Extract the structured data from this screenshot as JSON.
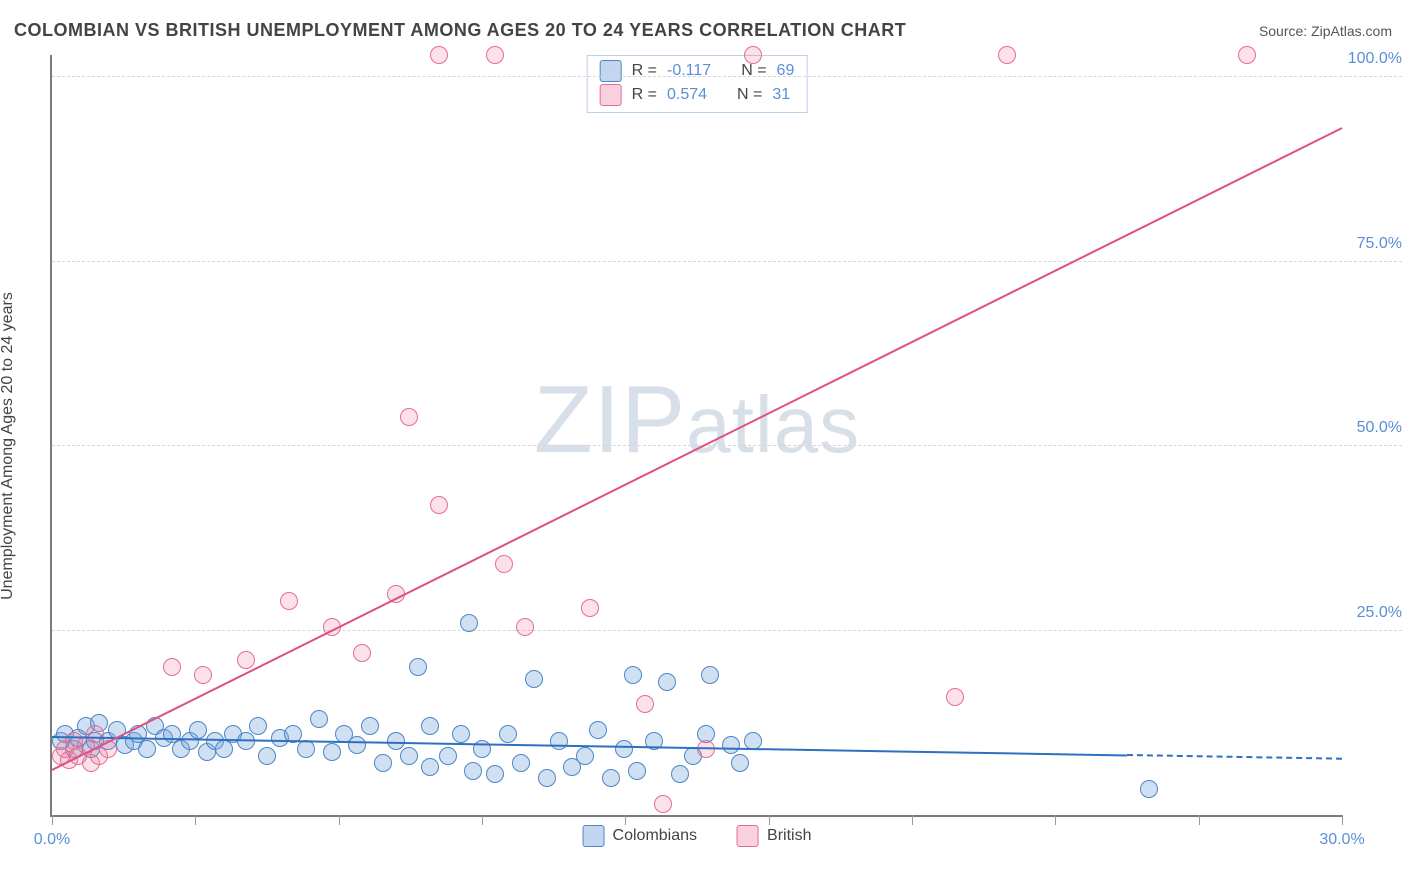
{
  "title": "COLOMBIAN VS BRITISH UNEMPLOYMENT AMONG AGES 20 TO 24 YEARS CORRELATION CHART",
  "source_prefix": "Source: ",
  "source_name": "ZipAtlas.com",
  "ylabel": "Unemployment Among Ages 20 to 24 years",
  "watermark_a": "ZIP",
  "watermark_b": "atlas",
  "chart": {
    "type": "scatter",
    "xlim": [
      0,
      30
    ],
    "ylim": [
      0,
      103
    ],
    "xtick_positions": [
      0,
      3.33,
      6.67,
      10,
      13.33,
      16.67,
      20,
      23.33,
      26.67,
      30
    ],
    "xtick_labels": {
      "0": "0.0%",
      "30": "30.0%"
    },
    "ytick_positions": [
      25,
      50,
      75,
      100
    ],
    "ytick_labels": [
      "25.0%",
      "50.0%",
      "75.0%",
      "100.0%"
    ],
    "grid_color": "#d6d6d6",
    "axis_color": "#7a7a7a",
    "background_color": "#ffffff",
    "marker_radius": 9,
    "series": [
      {
        "id": "colombians",
        "label": "Colombians",
        "fill": "rgba(120,165,220,0.35)",
        "stroke": "#4d86c6",
        "R": "-0.117",
        "N": "69",
        "trend": {
          "x1": 0,
          "y1": 10.5,
          "x2": 25,
          "y2": 8.0,
          "solid_to_x": 25,
          "dash_to_x": 30,
          "color": "#2e6fc0"
        },
        "points": [
          [
            0.2,
            10
          ],
          [
            0.3,
            11
          ],
          [
            0.5,
            9
          ],
          [
            0.6,
            10.5
          ],
          [
            0.8,
            12
          ],
          [
            0.9,
            9
          ],
          [
            1.0,
            10
          ],
          [
            1.1,
            12.5
          ],
          [
            1.3,
            10
          ],
          [
            1.5,
            11.5
          ],
          [
            1.7,
            9.5
          ],
          [
            1.9,
            10
          ],
          [
            2.0,
            11
          ],
          [
            2.2,
            9
          ],
          [
            2.4,
            12
          ],
          [
            2.6,
            10.5
          ],
          [
            2.8,
            11
          ],
          [
            3.0,
            9
          ],
          [
            3.2,
            10
          ],
          [
            3.4,
            11.5
          ],
          [
            3.6,
            8.5
          ],
          [
            3.8,
            10
          ],
          [
            4.0,
            9
          ],
          [
            4.2,
            11
          ],
          [
            4.5,
            10
          ],
          [
            4.8,
            12
          ],
          [
            5.0,
            8
          ],
          [
            5.3,
            10.5
          ],
          [
            5.6,
            11
          ],
          [
            5.9,
            9
          ],
          [
            6.2,
            13
          ],
          [
            6.5,
            8.5
          ],
          [
            6.8,
            11
          ],
          [
            7.1,
            9.5
          ],
          [
            7.4,
            12
          ],
          [
            7.7,
            7
          ],
          [
            8.0,
            10
          ],
          [
            8.3,
            8
          ],
          [
            8.5,
            20
          ],
          [
            8.8,
            6.5
          ],
          [
            8.8,
            12
          ],
          [
            9.2,
            8
          ],
          [
            9.5,
            11
          ],
          [
            9.7,
            26
          ],
          [
            9.8,
            6
          ],
          [
            10.0,
            9
          ],
          [
            10.3,
            5.5
          ],
          [
            10.6,
            11
          ],
          [
            10.9,
            7
          ],
          [
            11.2,
            18.5
          ],
          [
            11.5,
            5
          ],
          [
            11.8,
            10
          ],
          [
            12.1,
            6.5
          ],
          [
            12.4,
            8
          ],
          [
            12.7,
            11.5
          ],
          [
            13.0,
            5
          ],
          [
            13.3,
            9
          ],
          [
            13.5,
            19
          ],
          [
            13.6,
            6
          ],
          [
            14.0,
            10
          ],
          [
            14.3,
            18
          ],
          [
            14.6,
            5.5
          ],
          [
            14.9,
            8
          ],
          [
            15.2,
            11
          ],
          [
            15.3,
            19
          ],
          [
            15.8,
            9.5
          ],
          [
            16.0,
            7
          ],
          [
            16.3,
            10
          ],
          [
            25.5,
            3.5
          ]
        ]
      },
      {
        "id": "british",
        "label": "British",
        "fill": "rgba(235,120,160,0.22)",
        "stroke": "#e56d94",
        "R": "0.574",
        "N": "31",
        "trend": {
          "x1": 0,
          "y1": 6,
          "x2": 30,
          "y2": 93,
          "solid_to_x": 30,
          "dash_to_x": 30,
          "color": "#e14f82"
        },
        "points": [
          [
            0.2,
            8
          ],
          [
            0.3,
            9
          ],
          [
            0.4,
            7.5
          ],
          [
            0.5,
            10
          ],
          [
            0.6,
            8
          ],
          [
            0.8,
            9.5
          ],
          [
            0.9,
            7
          ],
          [
            1.0,
            11
          ],
          [
            1.1,
            8
          ],
          [
            1.3,
            9
          ],
          [
            2.8,
            20
          ],
          [
            3.5,
            19
          ],
          [
            4.5,
            21
          ],
          [
            5.5,
            29
          ],
          [
            6.5,
            25.5
          ],
          [
            7.2,
            22
          ],
          [
            8.0,
            30
          ],
          [
            8.3,
            54
          ],
          [
            9.0,
            42
          ],
          [
            9.0,
            103
          ],
          [
            10.3,
            103
          ],
          [
            10.5,
            34
          ],
          [
            11.0,
            25.5
          ],
          [
            12.5,
            28
          ],
          [
            13.8,
            15
          ],
          [
            14.2,
            1.5
          ],
          [
            15.2,
            9
          ],
          [
            16.3,
            103
          ],
          [
            21.0,
            16
          ],
          [
            22.2,
            103
          ],
          [
            27.8,
            103
          ]
        ]
      }
    ]
  },
  "legend_box": {
    "r_label": "R =",
    "n_label": "N ="
  }
}
